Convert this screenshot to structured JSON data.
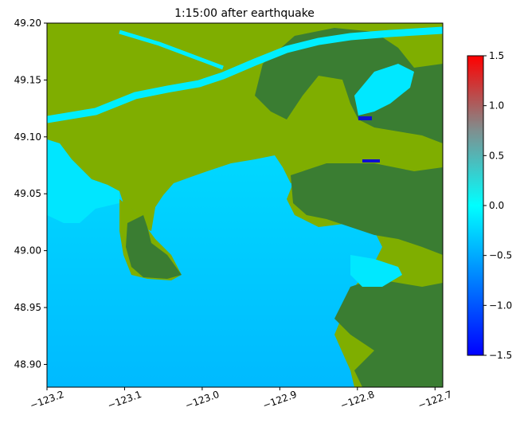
{
  "chart_data": {
    "type": "heatmap",
    "title": "1:15:00 after earthquake",
    "xlabel": "",
    "ylabel": "",
    "xlim": [
      -123.2,
      -122.69
    ],
    "ylim": [
      48.88,
      49.2
    ],
    "x_ticks": [
      -123.2,
      -123.1,
      -123.0,
      -122.9,
      -122.8,
      -122.7
    ],
    "x_tick_labels": [
      "−123.2",
      "−123.1",
      "−123.0",
      "−122.9",
      "−122.8",
      "−122.7"
    ],
    "y_ticks": [
      49.2,
      49.15,
      49.1,
      49.05,
      49.0,
      48.95,
      48.9
    ],
    "y_tick_labels": [
      "49.20",
      "49.15",
      "49.10",
      "49.05",
      "49.00",
      "48.95",
      "48.90"
    ],
    "colorbar": {
      "range": [
        -1.5,
        1.5
      ],
      "ticks": [
        1.5,
        1.0,
        0.5,
        0.0,
        -0.5,
        -1.0,
        -1.5
      ],
      "tick_labels": [
        "1.5",
        "1.0",
        "0.5",
        "0.0",
        "−0.5",
        "−1.0",
        "−1.5"
      ],
      "colors": [
        "#0000ff",
        "#00ffff",
        "#ff0000"
      ]
    },
    "land_colors": {
      "lowland": "#7fae00",
      "highland": "#3a7d32"
    },
    "water_color_near_shore": "#00e5ff",
    "water_color_offshore": "#00bfff"
  }
}
